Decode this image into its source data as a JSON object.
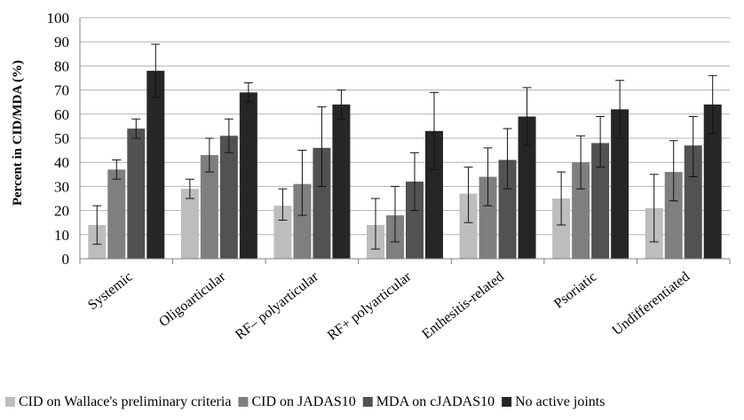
{
  "chart_data": {
    "type": "bar",
    "title": "",
    "xlabel": "",
    "ylabel": "Percent in CID/MDA (%)",
    "ylim": [
      0,
      100
    ],
    "yticks": [
      0,
      10,
      20,
      30,
      40,
      50,
      60,
      70,
      80,
      90,
      100
    ],
    "grid": true,
    "legend_position": "bottom",
    "categories": [
      "Systemic",
      "Oligoarticular",
      "RF– polyarticular",
      "RF+ polyarticular",
      "Enthesitis-related",
      "Psoriatic",
      "Undifferentiated"
    ],
    "series": [
      {
        "name": "CID on Wallace's preliminary criteria",
        "color": "#bdbdbd",
        "values": [
          14,
          29,
          22,
          14,
          27,
          25,
          21
        ],
        "error_low": [
          6,
          25,
          16,
          4,
          15,
          14,
          7
        ],
        "error_high": [
          22,
          33,
          29,
          25,
          38,
          36,
          35
        ]
      },
      {
        "name": "CID on JADAS10",
        "color": "#7f7f7f",
        "values": [
          37,
          43,
          31,
          18,
          34,
          40,
          36
        ],
        "error_low": [
          33,
          36,
          18,
          7,
          22,
          29,
          24
        ],
        "error_high": [
          41,
          50,
          45,
          30,
          46,
          51,
          49
        ]
      },
      {
        "name": "MDA on cJADAS10",
        "color": "#525252",
        "values": [
          54,
          51,
          46,
          32,
          41,
          48,
          47
        ],
        "error_low": [
          50,
          44,
          30,
          20,
          29,
          38,
          34
        ],
        "error_high": [
          58,
          58,
          63,
          44,
          54,
          59,
          59
        ]
      },
      {
        "name": "No active joints",
        "color": "#262626",
        "values": [
          78,
          69,
          64,
          53,
          59,
          62,
          64
        ],
        "error_low": [
          67,
          65,
          58,
          37,
          47,
          50,
          52
        ],
        "error_high": [
          89,
          73,
          70,
          69,
          71,
          74,
          76
        ]
      }
    ]
  }
}
